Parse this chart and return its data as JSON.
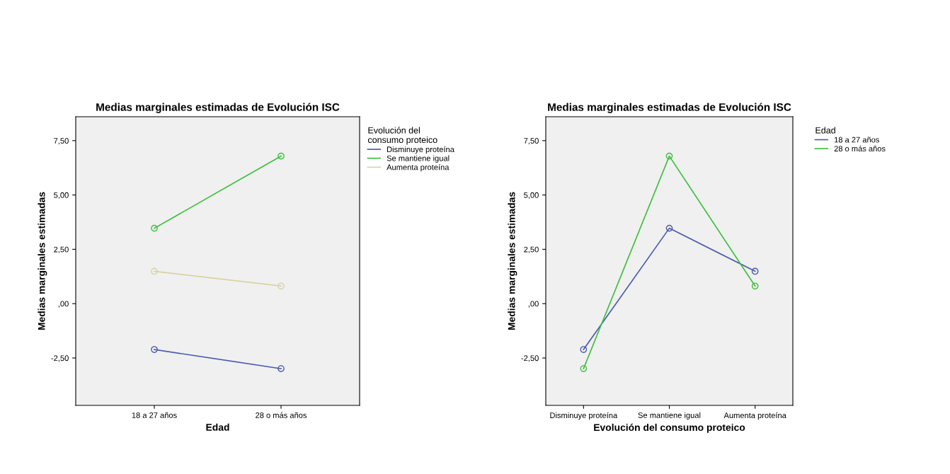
{
  "chart_data": [
    {
      "type": "line",
      "title": "Medias marginales estimadas de Evolución ISC",
      "xlabel": "Edad",
      "ylabel": "Medias marginales estimadas",
      "legend_title": "Evolución del\nconsumo proteico",
      "legend": "top right",
      "marker": "circle",
      "line_style": "solid",
      "grid": false,
      "categories": [
        "18 a 27 años",
        "28 o más años"
      ],
      "ylim": [
        -4.68,
        8.6
      ],
      "yticks": [
        {
          "value": -2.5,
          "label": "-2,50"
        },
        {
          "value": 0,
          "label": ",00"
        },
        {
          "value": 2.5,
          "label": "2,50"
        },
        {
          "value": 5,
          "label": "5,00"
        },
        {
          "value": 7.5,
          "label": "7,50"
        }
      ],
      "series": [
        {
          "name": "Disminuye proteína",
          "color": "#4a5ab0",
          "values": [
            -2.11,
            -2.99
          ]
        },
        {
          "name": "Se mantiene igual",
          "color": "#3cc03c",
          "values": [
            3.47,
            6.79
          ]
        },
        {
          "name": "Aumenta proteína",
          "color": "#d8d4a4",
          "values": [
            1.49,
            0.81
          ]
        }
      ]
    },
    {
      "type": "line",
      "title": "Medias marginales estimadas de Evolución ISC",
      "xlabel": "Evolución del consumo proteico",
      "ylabel": "Medias marginales estimadas",
      "legend_title": "Edad",
      "legend": "top right",
      "marker": "circle",
      "line_style": "solid",
      "grid": false,
      "categories": [
        "Disminuye proteína",
        "Se mantiene igual",
        "Aumenta proteína"
      ],
      "ylim": [
        -4.68,
        8.6
      ],
      "yticks": [
        {
          "value": -2.5,
          "label": "-2,50"
        },
        {
          "value": 0,
          "label": ",00"
        },
        {
          "value": 2.5,
          "label": "2,50"
        },
        {
          "value": 5,
          "label": "5,00"
        },
        {
          "value": 7.5,
          "label": "7,50"
        }
      ],
      "series": [
        {
          "name": "18 a 27 años",
          "color": "#4a5ab0",
          "values": [
            -2.11,
            3.47,
            1.49
          ]
        },
        {
          "name": "28 o más años",
          "color": "#3cc03c",
          "values": [
            -2.99,
            6.79,
            0.81
          ]
        }
      ]
    }
  ]
}
